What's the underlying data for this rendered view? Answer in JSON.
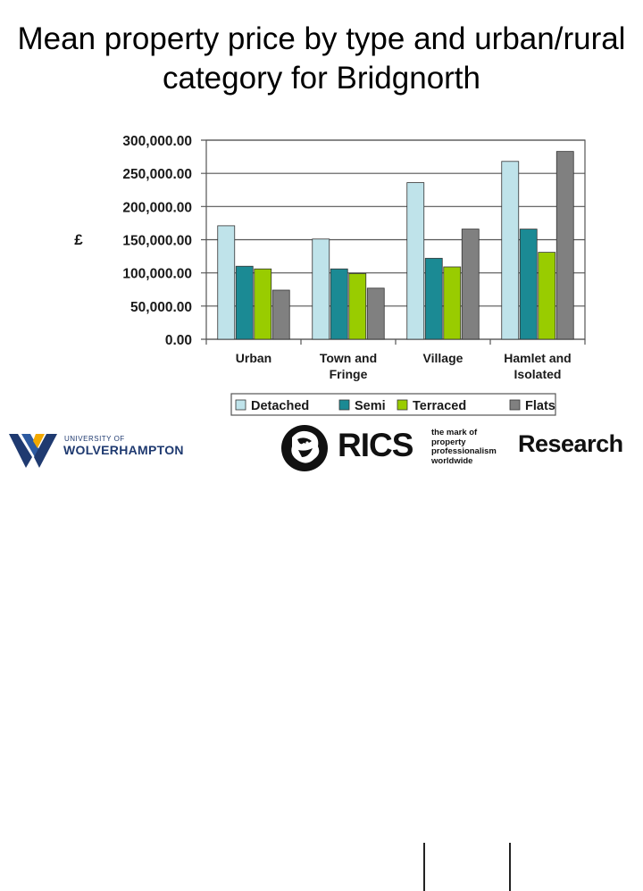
{
  "slide": {
    "title": "Mean property price by type and urban/rural category for Bridgnorth"
  },
  "chart_data": {
    "type": "bar",
    "title": "",
    "xlabel": "",
    "ylabel": "£",
    "categories": [
      "Urban",
      "Town and Fringe",
      "Village",
      "Hamlet and Isolated"
    ],
    "category_lines": [
      [
        "Urban"
      ],
      [
        "Town and",
        "Fringe"
      ],
      [
        "Village"
      ],
      [
        "Hamlet and",
        "Isolated"
      ]
    ],
    "series": [
      {
        "name": "Detached",
        "color": "#bfe3ea",
        "values": [
          171000,
          151000,
          236000,
          268000
        ]
      },
      {
        "name": "Semi",
        "color": "#1b8a94",
        "values": [
          110000,
          106000,
          122000,
          166000
        ]
      },
      {
        "name": "Terraced",
        "color": "#99cc00",
        "values": [
          106000,
          99000,
          109000,
          131000
        ]
      },
      {
        "name": "Flats",
        "color": "#808080",
        "values": [
          74000,
          77000,
          166000,
          283000
        ]
      }
    ],
    "yticks": [
      0,
      50000,
      100000,
      150000,
      200000,
      250000,
      300000
    ],
    "ytick_labels": [
      "0.00",
      "50,000.00",
      "100,000.00",
      "150,000.00",
      "200,000.00",
      "250,000.00",
      "300,000.00"
    ],
    "ylim": [
      0,
      300000
    ],
    "grid": true,
    "legend_position": "bottom"
  },
  "footer": {
    "university_small": "UNIVERSITY OF",
    "university_name": "WOLVERHAMPTON",
    "rics_logo_text": "RICS",
    "rics_tagline": "the mark of property professionalism worldwide",
    "research": "Research",
    "colors": {
      "university_blue": "#1f3a70",
      "rics_black": "#111111"
    }
  }
}
